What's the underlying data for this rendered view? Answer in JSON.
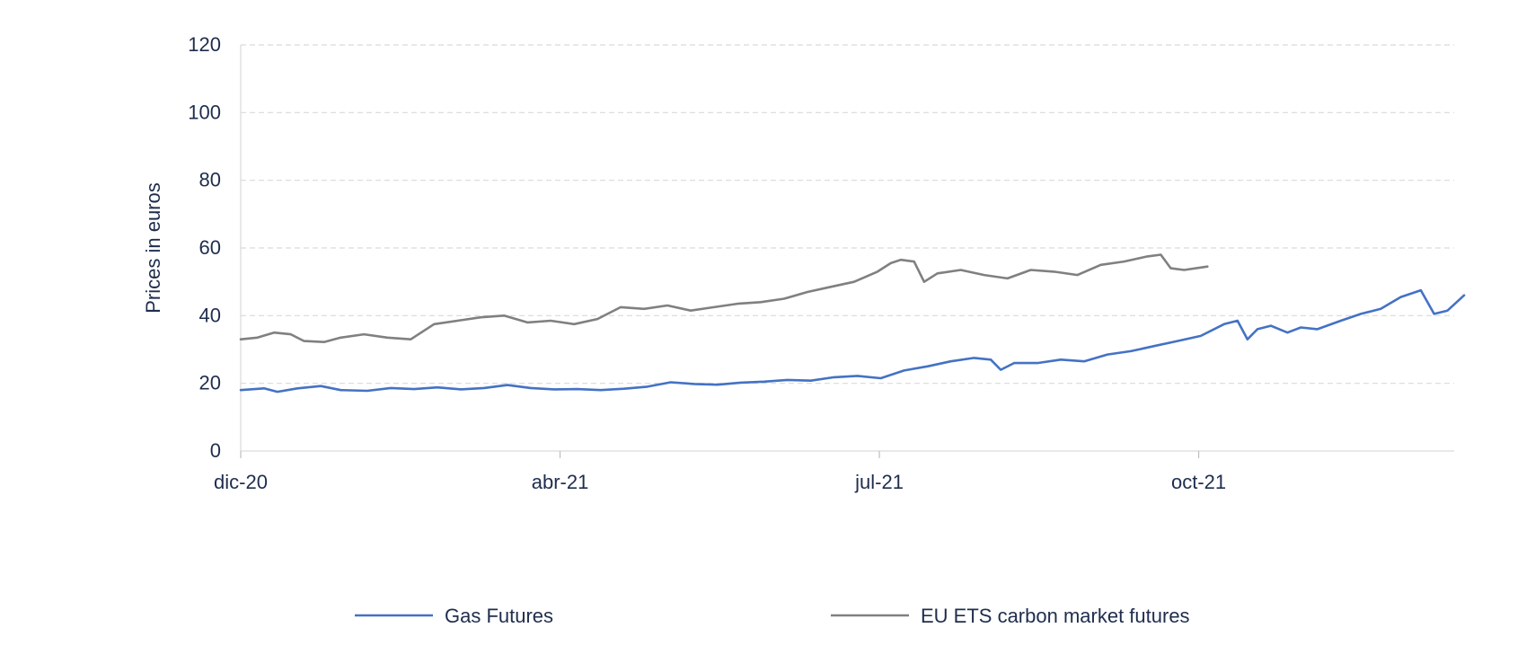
{
  "chart_data": {
    "type": "line",
    "title": "",
    "xlabel": "",
    "ylabel": "Prices in euros",
    "ylim": [
      0,
      120
    ],
    "yticks": [
      "0",
      "20",
      "40",
      "60",
      "80",
      "100",
      "120"
    ],
    "xticks": [
      "dic-20",
      "abr-21",
      "jul-21",
      "oct-21"
    ],
    "xlim": [
      "2020-12-01",
      "2021-11-30"
    ],
    "grid": "horizontal dashed",
    "legend_position": "bottom",
    "series": [
      {
        "name": "Gas Futures",
        "color": "#4472c4",
        "points": [
          [
            "2020-12-01",
            18
          ],
          [
            "2020-12-08",
            18.5
          ],
          [
            "2020-12-12",
            17.5
          ],
          [
            "2020-12-18",
            18.5
          ],
          [
            "2020-12-25",
            19.2
          ],
          [
            "2020-12-31",
            18
          ],
          [
            "2021-01-08",
            17.8
          ],
          [
            "2021-01-15",
            18.6
          ],
          [
            "2021-01-22",
            18.3
          ],
          [
            "2021-01-29",
            18.8
          ],
          [
            "2021-02-05",
            18.2
          ],
          [
            "2021-02-12",
            18.6
          ],
          [
            "2021-02-19",
            19.5
          ],
          [
            "2021-02-26",
            18.6
          ],
          [
            "2021-03-05",
            18.2
          ],
          [
            "2021-03-12",
            18.3
          ],
          [
            "2021-03-19",
            18.0
          ],
          [
            "2021-03-26",
            18.4
          ],
          [
            "2021-04-02",
            19.0
          ],
          [
            "2021-04-09",
            20.3
          ],
          [
            "2021-04-16",
            19.8
          ],
          [
            "2021-04-23",
            19.6
          ],
          [
            "2021-04-30",
            20.2
          ],
          [
            "2021-05-07",
            20.5
          ],
          [
            "2021-05-14",
            21.0
          ],
          [
            "2021-05-21",
            20.8
          ],
          [
            "2021-05-28",
            21.8
          ],
          [
            "2021-06-04",
            22.2
          ],
          [
            "2021-06-11",
            21.5
          ],
          [
            "2021-06-18",
            23.8
          ],
          [
            "2021-06-25",
            25.0
          ],
          [
            "2021-07-02",
            26.5
          ],
          [
            "2021-07-09",
            27.5
          ],
          [
            "2021-07-14",
            27.0
          ],
          [
            "2021-07-17",
            24.0
          ],
          [
            "2021-07-21",
            26.0
          ],
          [
            "2021-07-28",
            26.0
          ],
          [
            "2021-08-04",
            27.0
          ],
          [
            "2021-08-11",
            26.5
          ],
          [
            "2021-08-18",
            28.5
          ],
          [
            "2021-08-25",
            29.5
          ],
          [
            "2021-09-01",
            31.0
          ],
          [
            "2021-09-08",
            32.5
          ],
          [
            "2021-09-15",
            34.0
          ],
          [
            "2021-09-22",
            37.5
          ],
          [
            "2021-09-26",
            38.5
          ],
          [
            "2021-09-29",
            33.0
          ],
          [
            "2021-10-02",
            36.0
          ],
          [
            "2021-10-06",
            37.0
          ],
          [
            "2021-10-11",
            35.0
          ],
          [
            "2021-10-15",
            36.5
          ],
          [
            "2021-10-20",
            36.0
          ],
          [
            "2021-10-27",
            38.5
          ],
          [
            "2021-11-02",
            40.5
          ],
          [
            "2021-11-08",
            42.0
          ],
          [
            "2021-11-14",
            45.5
          ],
          [
            "2021-11-20",
            47.5
          ],
          [
            "2021-11-24",
            40.5
          ],
          [
            "2021-11-28",
            41.5
          ],
          [
            "2021-12-03",
            46.0
          ]
        ]
      },
      {
        "name": "EU ETS carbon market futures",
        "color": "#808080",
        "points": [
          [
            "2020-12-01",
            33
          ],
          [
            "2020-12-06",
            33.5
          ],
          [
            "2020-12-11",
            35
          ],
          [
            "2020-12-16",
            34.5
          ],
          [
            "2020-12-20",
            32.5
          ],
          [
            "2020-12-26",
            32.2
          ],
          [
            "2020-12-31",
            33.5
          ],
          [
            "2021-01-07",
            34.5
          ],
          [
            "2021-01-14",
            33.5
          ],
          [
            "2021-01-21",
            33.0
          ],
          [
            "2021-01-28",
            37.5
          ],
          [
            "2021-02-04",
            38.5
          ],
          [
            "2021-02-11",
            39.5
          ],
          [
            "2021-02-18",
            40.0
          ],
          [
            "2021-02-25",
            38.0
          ],
          [
            "2021-03-04",
            38.5
          ],
          [
            "2021-03-11",
            37.5
          ],
          [
            "2021-03-18",
            39.0
          ],
          [
            "2021-03-25",
            42.5
          ],
          [
            "2021-04-01",
            42.0
          ],
          [
            "2021-04-08",
            43.0
          ],
          [
            "2021-04-15",
            41.5
          ],
          [
            "2021-04-22",
            42.5
          ],
          [
            "2021-04-29",
            43.5
          ],
          [
            "2021-05-06",
            44.0
          ],
          [
            "2021-05-13",
            45.0
          ],
          [
            "2021-05-20",
            47.0
          ],
          [
            "2021-05-27",
            48.5
          ],
          [
            "2021-06-03",
            50.0
          ],
          [
            "2021-06-10",
            53.0
          ],
          [
            "2021-06-14",
            55.5
          ],
          [
            "2021-06-17",
            56.5
          ],
          [
            "2021-06-21",
            56.0
          ],
          [
            "2021-06-24",
            50.0
          ],
          [
            "2021-06-28",
            52.5
          ],
          [
            "2021-07-05",
            53.5
          ],
          [
            "2021-07-12",
            52.0
          ],
          [
            "2021-07-19",
            51.0
          ],
          [
            "2021-07-26",
            53.5
          ],
          [
            "2021-08-02",
            53.0
          ],
          [
            "2021-08-09",
            52.0
          ],
          [
            "2021-08-16",
            55.0
          ],
          [
            "2021-08-23",
            56.0
          ],
          [
            "2021-08-30",
            57.5
          ],
          [
            "2021-09-03",
            58.0
          ],
          [
            "2021-09-06",
            54.0
          ],
          [
            "2021-09-10",
            53.5
          ],
          [
            "2021-09-17",
            54.5
          ]
        ]
      }
    ]
  }
}
